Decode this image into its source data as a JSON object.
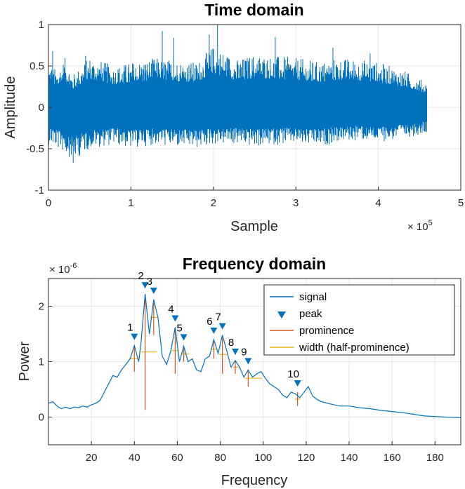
{
  "chart_data": [
    {
      "type": "line",
      "title": "Time domain",
      "xlabel": "Sample",
      "ylabel": "Amplitude",
      "x_exponent": "× 10^5",
      "x_exponent_base": "× 10",
      "x_exponent_power": "5",
      "xlim": [
        0,
        5
      ],
      "ylim": [
        -1,
        1
      ],
      "xticks": [
        0,
        1,
        2,
        3,
        4,
        5
      ],
      "xtick_labels": [
        "0",
        "1",
        "2",
        "3",
        "4",
        "5"
      ],
      "yticks": [
        -1,
        -0.5,
        0,
        0.5,
        1
      ],
      "ytick_labels": [
        "-1",
        "-0.5",
        "0",
        "0.5",
        "1"
      ],
      "grid": true,
      "signal_extent": [
        0,
        4.59
      ],
      "signal_envelope": {
        "x": [
          0,
          0.1,
          0.2,
          0.3,
          0.5,
          0.8,
          1.0,
          1.3,
          1.5,
          1.8,
          2.0,
          2.3,
          2.5,
          2.8,
          3.0,
          3.3,
          3.5,
          3.8,
          4.0,
          4.3,
          4.59
        ],
        "upper": [
          0.55,
          0.45,
          0.6,
          0.4,
          0.62,
          0.5,
          0.55,
          0.6,
          0.58,
          0.55,
          0.75,
          0.58,
          0.65,
          0.62,
          0.6,
          0.55,
          0.6,
          0.58,
          0.55,
          0.45,
          0.3
        ],
        "lower": [
          -0.45,
          -0.5,
          -0.55,
          -0.65,
          -0.5,
          -0.45,
          -0.5,
          -0.45,
          -0.48,
          -0.5,
          -0.45,
          -0.45,
          -0.48,
          -0.45,
          -0.45,
          -0.48,
          -0.42,
          -0.4,
          -0.42,
          -0.38,
          -0.3
        ]
      },
      "series": [
        {
          "name": "",
          "color": "#0072bd"
        }
      ]
    },
    {
      "type": "line",
      "title": "Frequency domain",
      "xlabel": "Frequency",
      "ylabel": "Power",
      "y_exponent": "× 10^-6",
      "y_exponent_base": "× 10",
      "y_exponent_power": "-6",
      "xlim": [
        0,
        192
      ],
      "ylim": [
        -0.5,
        2.5
      ],
      "xticks": [
        20,
        40,
        60,
        80,
        100,
        120,
        140,
        160,
        180
      ],
      "xtick_labels": [
        "20",
        "40",
        "60",
        "80",
        "100",
        "120",
        "140",
        "160",
        "180"
      ],
      "yticks": [
        0,
        1,
        2
      ],
      "ytick_labels": [
        "0",
        "1",
        "2"
      ],
      "grid": true,
      "legend_position": "top-right",
      "series": [
        {
          "name": "signal",
          "color": "#0072bd",
          "x": [
            0,
            2,
            4,
            6,
            8,
            10,
            12,
            14,
            16,
            18,
            20,
            22,
            24,
            26,
            28,
            30,
            32,
            34,
            36,
            38,
            40,
            42,
            43,
            45,
            47,
            49,
            51,
            53,
            55,
            57,
            59,
            61,
            63,
            65,
            67,
            69,
            71,
            73,
            75,
            77,
            79,
            81,
            83,
            85,
            87,
            89,
            91,
            93,
            95,
            97,
            99,
            101,
            103,
            105,
            107,
            109,
            111,
            113,
            115,
            117,
            119,
            121,
            123,
            125,
            127,
            130,
            133,
            136,
            140,
            145,
            150,
            155,
            160,
            165,
            170,
            175,
            180,
            185,
            192
          ],
          "y": [
            0.25,
            0.28,
            0.2,
            0.15,
            0.18,
            0.15,
            0.18,
            0.17,
            0.2,
            0.18,
            0.22,
            0.25,
            0.3,
            0.45,
            0.6,
            0.75,
            0.72,
            0.85,
            0.95,
            1.05,
            1.29,
            1.0,
            1.3,
            2.22,
            1.5,
            2.12,
            1.8,
            1.1,
            0.95,
            1.2,
            1.62,
            1.0,
            1.28,
            1.0,
            1.05,
            0.85,
            0.82,
            1.05,
            1.1,
            1.4,
            1.15,
            1.48,
            1.2,
            0.9,
            1.02,
            0.9,
            0.72,
            0.85,
            0.72,
            0.78,
            0.82,
            0.7,
            0.6,
            0.55,
            0.5,
            0.4,
            0.35,
            0.45,
            0.42,
            0.35,
            0.45,
            0.55,
            0.38,
            0.32,
            0.28,
            0.25,
            0.22,
            0.2,
            0.2,
            0.17,
            0.15,
            0.12,
            0.1,
            0.08,
            0.05,
            0.02,
            0.01,
            0.0,
            -0.01
          ]
        },
        {
          "name": "peak",
          "color": "#0072bd"
        },
        {
          "name": "prominence",
          "color": "#d95319"
        },
        {
          "name": "width (half-prominence)",
          "color": "#edb120"
        }
      ],
      "peaks": [
        {
          "label": "1",
          "x": 40,
          "y": 1.29,
          "prom_base": 0.82,
          "width": [
            37.5,
            41.5
          ]
        },
        {
          "label": "2",
          "x": 45,
          "y": 2.22,
          "prom_base": 0.13,
          "width": [
            43.2,
            50.5
          ]
        },
        {
          "label": "3",
          "x": 49,
          "y": 2.12,
          "prom_base": 1.48,
          "width": [
            47.3,
            50.6
          ]
        },
        {
          "label": "4",
          "x": 59,
          "y": 1.62,
          "prom_base": 0.78,
          "width": [
            57.5,
            60.7
          ]
        },
        {
          "label": "5",
          "x": 63,
          "y": 1.28,
          "prom_base": 1.0,
          "width": [
            61.8,
            65.5
          ]
        },
        {
          "label": "6",
          "x": 77,
          "y": 1.4,
          "prom_base": 1.05,
          "width": [
            75.8,
            78.3
          ]
        },
        {
          "label": "7",
          "x": 81,
          "y": 1.48,
          "prom_base": 0.78,
          "width": [
            79.5,
            83.2
          ]
        },
        {
          "label": "8",
          "x": 87,
          "y": 1.02,
          "prom_base": 0.78,
          "width": [
            85.8,
            88.5
          ]
        },
        {
          "label": "9",
          "x": 93,
          "y": 0.85,
          "prom_base": 0.55,
          "width": [
            91.5,
            99.5
          ]
        },
        {
          "label": "10",
          "x": 116,
          "y": 0.45,
          "prom_base": 0.2,
          "width": [
            114.8,
            117.2
          ]
        }
      ]
    }
  ]
}
